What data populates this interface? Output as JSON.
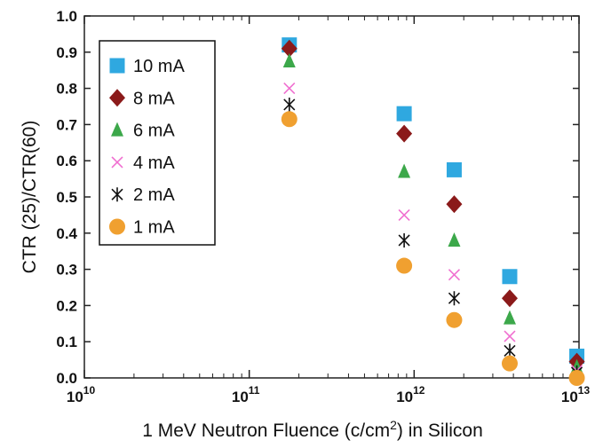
{
  "chart_data": {
    "type": "scatter",
    "xscale": "log",
    "xlim": [
      10000000000,
      10000000000000
    ],
    "ylim": [
      0,
      1.0
    ],
    "xlabel_main": "1 MeV Neutron Fluence (c/cm",
    "xlabel_sup": "2",
    "xlabel_tail": ") in Silicon",
    "ylabel": "CTR (25)/CTR(60)",
    "x_ticks": [
      {
        "value": 10000000000,
        "base": "10",
        "exp": "10"
      },
      {
        "value": 100000000000,
        "base": "10",
        "exp": "11"
      },
      {
        "value": 1000000000000,
        "base": "10",
        "exp": "12"
      },
      {
        "value": 10000000000000,
        "base": "10",
        "exp": "13"
      }
    ],
    "y_ticks": [
      {
        "value": 0.0,
        "label": "0.0"
      },
      {
        "value": 0.1,
        "label": "0.1"
      },
      {
        "value": 0.2,
        "label": "0.2"
      },
      {
        "value": 0.3,
        "label": "0.3"
      },
      {
        "value": 0.4,
        "label": "0.4"
      },
      {
        "value": 0.5,
        "label": "0.5"
      },
      {
        "value": 0.6,
        "label": "0.6"
      },
      {
        "value": 0.7,
        "label": "0.7"
      },
      {
        "value": 0.8,
        "label": "0.8"
      },
      {
        "value": 0.9,
        "label": "0.9"
      },
      {
        "value": 1.0,
        "label": "1.0"
      }
    ],
    "grid": false,
    "legend_position": "top-left",
    "x": [
      175000000000,
      870000000000,
      1750000000000,
      3800000000000,
      9700000000000
    ],
    "series": [
      {
        "name": "10 mA",
        "marker": "square",
        "color": "#2fa8e0",
        "values": [
          0.92,
          0.73,
          0.575,
          0.28,
          0.06
        ]
      },
      {
        "name": "8 mA",
        "marker": "diamond",
        "color": "#8b1a1a",
        "values": [
          0.91,
          0.675,
          0.48,
          0.22,
          0.045
        ]
      },
      {
        "name": "6 mA",
        "marker": "triangle",
        "color": "#3ca84a",
        "values": [
          0.875,
          0.57,
          0.38,
          0.165,
          0.03
        ]
      },
      {
        "name": "4 mA",
        "marker": "x",
        "color": "#f06fd0",
        "values": [
          0.8,
          0.45,
          0.285,
          0.115,
          0.02
        ]
      },
      {
        "name": "2 mA",
        "marker": "asterisk",
        "color": "#111111",
        "values": [
          0.755,
          0.38,
          0.22,
          0.075,
          0.015
        ]
      },
      {
        "name": "1 mA",
        "marker": "circle",
        "color": "#f0a030",
        "values": [
          0.715,
          0.31,
          0.16,
          0.04,
          0.0
        ]
      }
    ]
  }
}
